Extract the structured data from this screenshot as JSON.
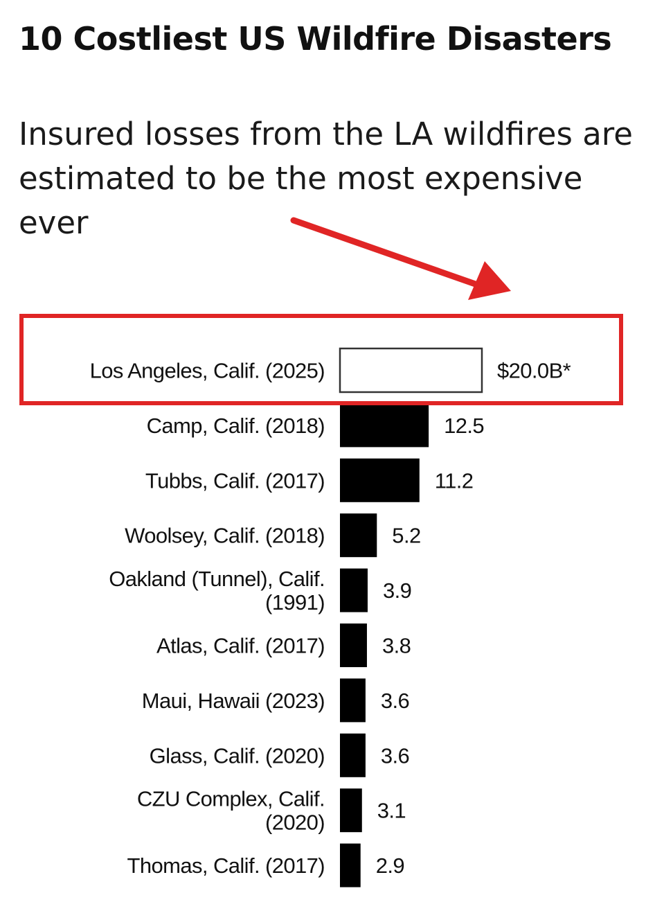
{
  "colors": {
    "bar": "#000000",
    "highlight_bar_fill": "#ffffff",
    "highlight_bar_stroke": "#333333",
    "annotation": "#e02525"
  },
  "chart_data": {
    "type": "bar",
    "orientation": "horizontal",
    "title": "10 Costliest US Wildfire Disasters",
    "subtitle": "Insured losses from the LA wildfires are estimated to be the most expensive ever",
    "xlabel": "",
    "ylabel": "",
    "grid": false,
    "legend": "none",
    "unit": "USD billions",
    "categories": [
      [
        "Los Angeles, Calif. (2025)"
      ],
      [
        "Camp, Calif. (2018)"
      ],
      [
        "Tubbs, Calif. (2017)"
      ],
      [
        "Woolsey, Calif. (2018)"
      ],
      [
        "Oakland (Tunnel), Calif.",
        "(1991)"
      ],
      [
        "Atlas, Calif. (2017)"
      ],
      [
        "Maui, Hawaii (2023)"
      ],
      [
        "Glass, Calif. (2020)"
      ],
      [
        "CZU Complex, Calif.",
        "(2020)"
      ],
      [
        "Thomas, Calif. (2017)"
      ]
    ],
    "values": [
      20.0,
      12.5,
      11.2,
      5.2,
      3.9,
      3.8,
      3.6,
      3.6,
      3.1,
      2.9
    ],
    "value_labels": [
      "$20.0B*",
      "12.5",
      "11.2",
      "5.2",
      "3.9",
      "3.8",
      "3.6",
      "3.6",
      "3.1",
      "2.9"
    ],
    "highlight_index": 0,
    "annotation": "Red arrow and red box highlighting the Los Angeles (2025) bar"
  }
}
